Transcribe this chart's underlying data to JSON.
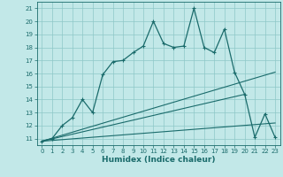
{
  "title": "",
  "xlabel": "Humidex (Indice chaleur)",
  "bg_color": "#c2e8e8",
  "line_color": "#1a6b6b",
  "grid_color": "#8ec8c8",
  "xlim": [
    -0.5,
    23.5
  ],
  "ylim": [
    10.5,
    21.5
  ],
  "xticks": [
    0,
    1,
    2,
    3,
    4,
    5,
    6,
    7,
    8,
    9,
    10,
    11,
    12,
    13,
    14,
    15,
    16,
    17,
    18,
    19,
    20,
    21,
    22,
    23
  ],
  "yticks": [
    11,
    12,
    13,
    14,
    15,
    16,
    17,
    18,
    19,
    20,
    21
  ],
  "main_x": [
    0,
    1,
    2,
    3,
    4,
    5,
    6,
    7,
    8,
    9,
    10,
    11,
    12,
    13,
    14,
    15,
    16,
    17,
    18,
    19,
    20,
    21,
    22,
    23
  ],
  "main_y": [
    10.8,
    11.0,
    12.0,
    12.6,
    14.0,
    13.0,
    15.9,
    16.9,
    17.0,
    17.6,
    18.1,
    20.0,
    18.3,
    18.0,
    18.1,
    21.0,
    18.0,
    17.6,
    19.4,
    16.1,
    14.4,
    11.1,
    12.9,
    11.1
  ],
  "line1_x": [
    0,
    23
  ],
  "line1_y": [
    10.8,
    16.1
  ],
  "line2_x": [
    0,
    20
  ],
  "line2_y": [
    10.8,
    14.4
  ],
  "line3_x": [
    0,
    23
  ],
  "line3_y": [
    10.8,
    12.2
  ],
  "marker": "+"
}
